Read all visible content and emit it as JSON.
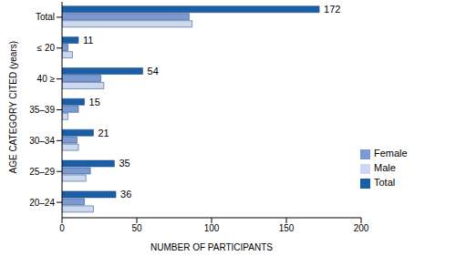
{
  "chart_data": {
    "type": "bar",
    "orientation": "horizontal",
    "x_label": "NUMBER OF PARTICIPANTS",
    "y_label": "AGE CATEGORY CITED (years)",
    "categories": [
      "Total",
      "≤ 20",
      "40 ≥",
      "35–39",
      "30–34",
      "25–29",
      "20–24"
    ],
    "series": [
      {
        "name": "Total",
        "color": "#1b5ea8",
        "values": [
          172,
          11,
          54,
          15,
          21,
          35,
          36
        ],
        "data_labels": true
      },
      {
        "name": "Female",
        "color": "#7b9ad4",
        "values": [
          85,
          4,
          26,
          11,
          10,
          19,
          15
        ]
      },
      {
        "name": "Male",
        "color": "#ccd8ef",
        "values": [
          87,
          7,
          28,
          4,
          11,
          16,
          21
        ]
      }
    ],
    "xlim": [
      0,
      200
    ],
    "xticks": [
      0,
      50,
      100,
      150,
      200
    ],
    "grid": false,
    "legend": "lower right"
  }
}
